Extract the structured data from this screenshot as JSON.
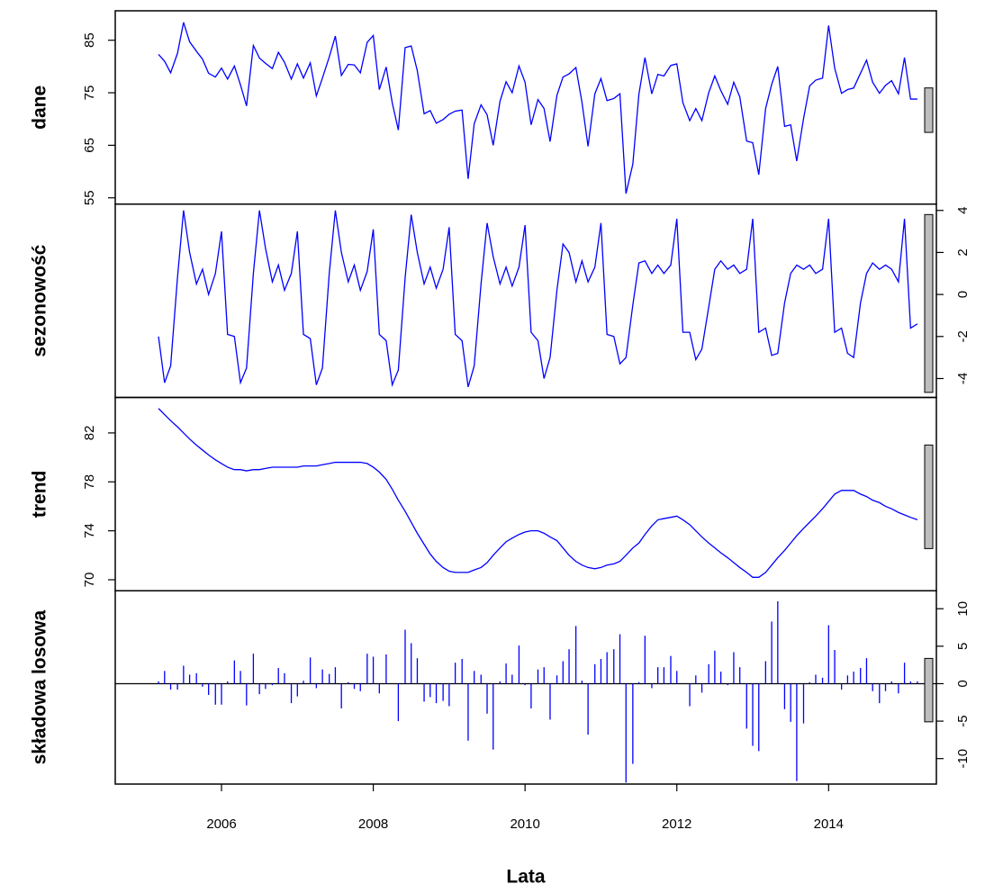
{
  "chart_data": {
    "type": "panels",
    "color": "#0000ff",
    "xlabel": "Lata",
    "xlim": [
      2004.6,
      2015.42
    ],
    "xticks": [
      2006,
      2008,
      2010,
      2012,
      2014
    ],
    "x": [
      2005.17,
      2005.25,
      2005.33,
      2005.42,
      2005.5,
      2005.58,
      2005.67,
      2005.75,
      2005.83,
      2005.92,
      2006,
      2006.08,
      2006.17,
      2006.25,
      2006.33,
      2006.42,
      2006.5,
      2006.58,
      2006.67,
      2006.75,
      2006.83,
      2006.92,
      2007,
      2007.08,
      2007.17,
      2007.25,
      2007.33,
      2007.42,
      2007.5,
      2007.58,
      2007.67,
      2007.75,
      2007.83,
      2007.92,
      2008,
      2008.08,
      2008.17,
      2008.25,
      2008.33,
      2008.42,
      2008.5,
      2008.58,
      2008.67,
      2008.75,
      2008.83,
      2008.92,
      2009,
      2009.08,
      2009.17,
      2009.25,
      2009.33,
      2009.42,
      2009.5,
      2009.58,
      2009.67,
      2009.75,
      2009.83,
      2009.92,
      2010,
      2010.08,
      2010.17,
      2010.25,
      2010.33,
      2010.42,
      2010.5,
      2010.58,
      2010.67,
      2010.75,
      2010.83,
      2010.92,
      2011,
      2011.08,
      2011.17,
      2011.25,
      2011.33,
      2011.42,
      2011.5,
      2011.58,
      2011.67,
      2011.75,
      2011.83,
      2011.92,
      2012,
      2012.08,
      2012.17,
      2012.25,
      2012.33,
      2012.42,
      2012.5,
      2012.58,
      2012.67,
      2012.75,
      2012.83,
      2012.92,
      2013,
      2013.08,
      2013.17,
      2013.25,
      2013.33,
      2013.42,
      2013.5,
      2013.58,
      2013.67,
      2013.75,
      2013.83,
      2013.92,
      2014,
      2014.08,
      2014.17,
      2014.25,
      2014.33,
      2014.42,
      2014.5,
      2014.58,
      2014.67,
      2014.75,
      2014.83,
      2014.92,
      2015,
      2015.08,
      2015.17
    ],
    "panels": [
      {
        "type": "line",
        "ylabel": "dane",
        "axis_side": "left",
        "ylim": [
          53.8,
          90.6
        ],
        "yticks": [
          55,
          65,
          75,
          85
        ],
        "values": [
          82.3,
          81.0,
          78.8,
          82.5,
          88.4,
          84.7,
          82.9,
          81.4,
          78.7,
          78.0,
          79.7,
          77.6,
          80.1,
          76.5,
          72.5,
          84.0,
          81.6,
          80.6,
          79.6,
          82.7,
          80.8,
          77.6,
          80.5,
          77.8,
          80.7,
          74.4,
          77.8,
          81.8,
          85.8,
          78.3,
          80.4,
          80.3,
          78.8,
          84.6,
          85.9,
          75.6,
          79.9,
          73.1,
          67.9,
          83.6,
          83.9,
          79.2,
          71.0,
          71.6,
          69.2,
          69.9,
          70.9,
          71.5,
          71.7,
          58.6,
          69.1,
          72.7,
          70.8,
          65.0,
          73.4,
          77.1,
          75.0,
          80.1,
          77.0,
          68.9,
          73.7,
          72.0,
          65.7,
          74.5,
          78.0,
          78.6,
          79.8,
          73.2,
          64.8,
          74.8,
          77.7,
          73.5,
          73.9,
          74.8,
          55.8,
          61.4,
          74.7,
          81.7,
          74.8,
          78.5,
          78.2,
          80.2,
          80.5,
          73.1,
          69.7,
          72.0,
          69.7,
          75.0,
          78.2,
          75.4,
          72.8,
          77.0,
          74.2,
          65.8,
          65.5,
          59.4,
          72.0,
          76.6,
          80.0,
          68.6,
          68.9,
          62.0,
          70.1,
          76.3,
          77.4,
          77.8,
          87.8,
          79.7,
          74.9,
          75.6,
          75.9,
          78.7,
          81.2,
          77.0,
          74.9,
          76.4,
          77.3,
          74.8,
          81.7,
          73.8,
          73.8
        ]
      },
      {
        "type": "line",
        "ylabel": "sezonowość",
        "axis_side": "right",
        "ylim": [
          -4.9,
          4.3
        ],
        "yticks": [
          -4,
          -2,
          0,
          2,
          4
        ],
        "values": [
          -2.0,
          -4.2,
          -3.4,
          0.8,
          4.0,
          2.0,
          0.5,
          1.2,
          0.0,
          1.0,
          3.0,
          -1.9,
          -2.0,
          -4.2,
          -3.5,
          1.0,
          4.0,
          2.2,
          0.6,
          1.4,
          0.2,
          1.0,
          3.0,
          -1.9,
          -2.1,
          -4.3,
          -3.5,
          1.0,
          4.0,
          2.0,
          0.6,
          1.4,
          0.2,
          1.1,
          3.1,
          -1.9,
          -2.2,
          -4.3,
          -3.6,
          0.8,
          3.8,
          2.0,
          0.5,
          1.3,
          0.3,
          1.2,
          3.2,
          -1.9,
          -2.2,
          -4.4,
          -3.4,
          0.5,
          3.4,
          1.8,
          0.5,
          1.3,
          0.4,
          1.3,
          3.3,
          -1.8,
          -2.2,
          -4.0,
          -3.0,
          0.2,
          2.4,
          2.0,
          0.6,
          1.6,
          0.6,
          1.3,
          3.4,
          -1.9,
          -2.0,
          -3.3,
          -3.0,
          -0.5,
          1.5,
          1.6,
          1.0,
          1.4,
          1.0,
          1.4,
          3.6,
          -1.8,
          -1.8,
          -3.1,
          -2.6,
          -0.6,
          1.2,
          1.6,
          1.2,
          1.4,
          1.0,
          1.2,
          3.6,
          -1.8,
          -1.6,
          -2.9,
          -2.8,
          -0.4,
          1.0,
          1.4,
          1.2,
          1.4,
          1.0,
          1.2,
          3.6,
          -1.8,
          -1.6,
          -2.8,
          -3.0,
          -0.4,
          1.0,
          1.5,
          1.2,
          1.4,
          1.2,
          0.6,
          3.6,
          -1.6,
          -1.4
        ]
      },
      {
        "type": "line",
        "ylabel": "trend",
        "axis_side": "left",
        "ylim": [
          69.1,
          84.9
        ],
        "yticks": [
          70,
          74,
          78,
          82
        ],
        "values": [
          84.0,
          83.5,
          83.0,
          82.5,
          82.0,
          81.5,
          81.0,
          80.6,
          80.2,
          79.8,
          79.5,
          79.2,
          79.0,
          79.0,
          78.9,
          79.0,
          79.0,
          79.1,
          79.2,
          79.2,
          79.2,
          79.2,
          79.2,
          79.3,
          79.3,
          79.3,
          79.4,
          79.5,
          79.6,
          79.6,
          79.6,
          79.6,
          79.6,
          79.5,
          79.2,
          78.8,
          78.2,
          77.4,
          76.5,
          75.6,
          74.7,
          73.8,
          72.9,
          72.1,
          71.5,
          71.0,
          70.7,
          70.6,
          70.6,
          70.6,
          70.8,
          71.0,
          71.4,
          72.0,
          72.6,
          73.1,
          73.4,
          73.7,
          73.9,
          74.0,
          74.0,
          73.8,
          73.5,
          73.2,
          72.6,
          72.0,
          71.5,
          71.2,
          71.0,
          70.9,
          71.0,
          71.2,
          71.3,
          71.5,
          72.0,
          72.6,
          73.0,
          73.7,
          74.4,
          74.9,
          75.0,
          75.1,
          75.2,
          74.9,
          74.5,
          74.0,
          73.5,
          73.0,
          72.6,
          72.2,
          71.8,
          71.4,
          71.0,
          70.6,
          70.2,
          70.2,
          70.6,
          71.2,
          71.8,
          72.4,
          73.0,
          73.6,
          74.2,
          74.7,
          75.2,
          75.8,
          76.4,
          77.0,
          77.3,
          77.3,
          77.3,
          77.0,
          76.8,
          76.5,
          76.3,
          76.0,
          75.8,
          75.5,
          75.3,
          75.1,
          74.9
        ]
      },
      {
        "type": "bar",
        "ylabel": "składowa losowa",
        "axis_side": "right",
        "ylim": [
          -13.4,
          12.4
        ],
        "yticks": [
          -10,
          -5,
          0,
          5,
          10
        ],
        "values": [
          0.3,
          1.7,
          -0.8,
          -0.8,
          2.4,
          1.2,
          1.4,
          -0.4,
          -1.5,
          -2.8,
          -2.8,
          0.3,
          3.1,
          1.7,
          -2.9,
          4.0,
          -1.4,
          -0.7,
          -0.2,
          2.1,
          1.4,
          -2.6,
          -1.7,
          0.4,
          3.5,
          -0.6,
          1.9,
          1.3,
          2.2,
          -3.3,
          0.2,
          -0.7,
          -1.0,
          4.0,
          3.6,
          -1.3,
          3.9,
          0.0,
          -5.0,
          7.2,
          5.4,
          3.4,
          -2.4,
          -1.8,
          -2.6,
          -2.3,
          -3.0,
          2.8,
          3.3,
          -7.6,
          1.7,
          1.2,
          -4.0,
          -8.8,
          0.3,
          2.7,
          1.2,
          5.1,
          -0.2,
          -3.3,
          1.9,
          2.2,
          -4.8,
          1.1,
          3.0,
          4.6,
          7.7,
          0.4,
          -6.8,
          2.6,
          3.3,
          4.2,
          4.6,
          6.6,
          -13.2,
          -10.7,
          0.2,
          6.4,
          -0.6,
          2.2,
          2.2,
          3.7,
          1.7,
          0.0,
          -3.0,
          1.1,
          -1.2,
          2.6,
          4.4,
          1.6,
          -0.2,
          4.2,
          2.2,
          -6.0,
          -8.3,
          -9.0,
          3.0,
          8.3,
          11.0,
          -3.4,
          -5.1,
          -13.0,
          -5.3,
          0.2,
          1.2,
          0.8,
          7.8,
          4.5,
          -0.8,
          1.1,
          1.6,
          2.1,
          3.4,
          -1.0,
          -2.6,
          -1.0,
          0.3,
          -1.3,
          2.8,
          0.3,
          0.3
        ]
      }
    ]
  }
}
